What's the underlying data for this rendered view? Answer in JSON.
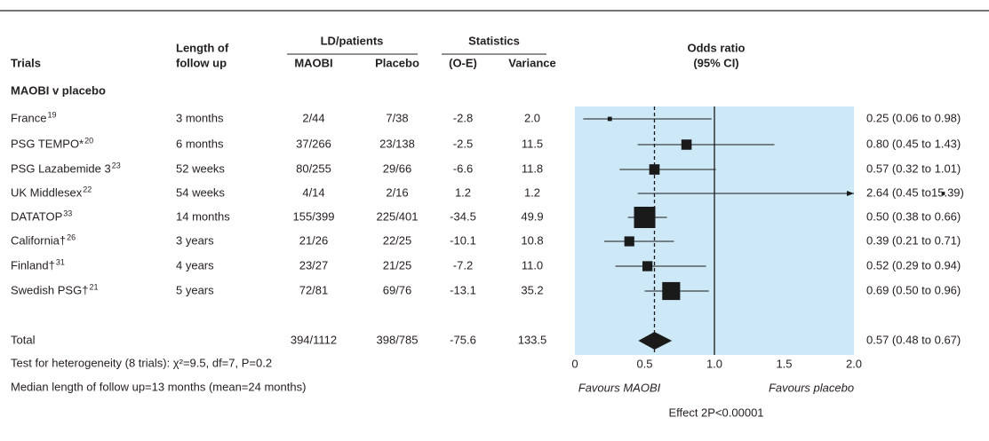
{
  "chart_data": {
    "type": "forest",
    "header": {
      "trials": "Trials",
      "follow_up_1": "Length of",
      "follow_up_2": "follow up",
      "ld_patients": "LD/patients",
      "maobi": "MAOBI",
      "placebo": "Placebo",
      "statistics": "Statistics",
      "oe": "(O-E)",
      "variance": "Variance",
      "odds_ratio_1": "Odds ratio",
      "odds_ratio_2": "(95% CI)"
    },
    "group": "MAOBI v placebo",
    "trials": [
      {
        "name": "France",
        "sup": "19",
        "follow_up": "3 months",
        "maobi": "2/44",
        "placebo": "7/38",
        "oe": "-2.8",
        "variance": "2.0",
        "or": 0.25,
        "lo": 0.06,
        "hi": 0.98,
        "ci_label": "0.25 (0.06 to 0.98)"
      },
      {
        "name": "PSG TEMPO*",
        "sup": "20",
        "follow_up": "6 months",
        "maobi": "37/266",
        "placebo": "23/138",
        "oe": "-2.5",
        "variance": "11.5",
        "or": 0.8,
        "lo": 0.45,
        "hi": 1.43,
        "ci_label": "0.80 (0.45 to 1.43)"
      },
      {
        "name": "PSG Lazabemide 3",
        "sup": "23",
        "follow_up": "52 weeks",
        "maobi": "80/255",
        "placebo": "29/66",
        "oe": "-6.6",
        "variance": "11.8",
        "or": 0.57,
        "lo": 0.32,
        "hi": 1.01,
        "ci_label": "0.57 (0.32 to 1.01)"
      },
      {
        "name": "UK Middlesex",
        "sup": "22",
        "follow_up": "54 weeks",
        "maobi": "4/14",
        "placebo": "2/16",
        "oe": "1.2",
        "variance": "1.2",
        "or": 2.64,
        "lo": 0.45,
        "hi": 15.39,
        "ci_label": "2.64 (0.45 to15.39)"
      },
      {
        "name": "DATATOP",
        "sup": "33",
        "follow_up": "14 months",
        "maobi": "155/399",
        "placebo": "225/401",
        "oe": "-34.5",
        "variance": "49.9",
        "or": 0.5,
        "lo": 0.38,
        "hi": 0.66,
        "ci_label": "0.50 (0.38 to 0.66)"
      },
      {
        "name": "California†",
        "sup": "26",
        "follow_up": "3 years",
        "maobi": "21/26",
        "placebo": "22/25",
        "oe": "-10.1",
        "variance": "10.8",
        "or": 0.39,
        "lo": 0.21,
        "hi": 0.71,
        "ci_label": "0.39 (0.21 to 0.71)"
      },
      {
        "name": "Finland†",
        "sup": "31",
        "follow_up": "4 years",
        "maobi": "23/27",
        "placebo": "21/25",
        "oe": "-7.2",
        "variance": "11.0",
        "or": 0.52,
        "lo": 0.29,
        "hi": 0.94,
        "ci_label": "0.52 (0.29 to 0.94)"
      },
      {
        "name": "Swedish PSG†",
        "sup": "21",
        "follow_up": "5 years",
        "maobi": "72/81",
        "placebo": "69/76",
        "oe": "-13.1",
        "variance": "35.2",
        "or": 0.69,
        "lo": 0.5,
        "hi": 0.96,
        "ci_label": "0.69 (0.50 to 0.96)"
      }
    ],
    "total": {
      "label": "Total",
      "maobi": "394/1112",
      "placebo": "398/785",
      "oe": "-75.6",
      "variance": "133.5",
      "or": 0.57,
      "lo": 0.48,
      "hi": 0.67,
      "ci_label": "0.57 (0.48 to 0.67)"
    },
    "notes": [
      "Test for heterogeneity (8 trials): χ²=9.5, df=7, P=0.2",
      "Median length of follow up=13 months (mean=24 months)"
    ],
    "xlim": [
      0,
      2
    ],
    "xticks": [
      0,
      0.5,
      {
        "value": 1,
        "label": "1.0"
      },
      1.5,
      {
        "value": 2,
        "label": "2.0"
      }
    ],
    "favours_left": "Favours MAOBI",
    "favours_right": "Favours placebo",
    "effect": "Effect 2P<0.00001",
    "null_line": 1,
    "plot_color": "#cde9f7",
    "mark_color": "#1a1a1a"
  }
}
